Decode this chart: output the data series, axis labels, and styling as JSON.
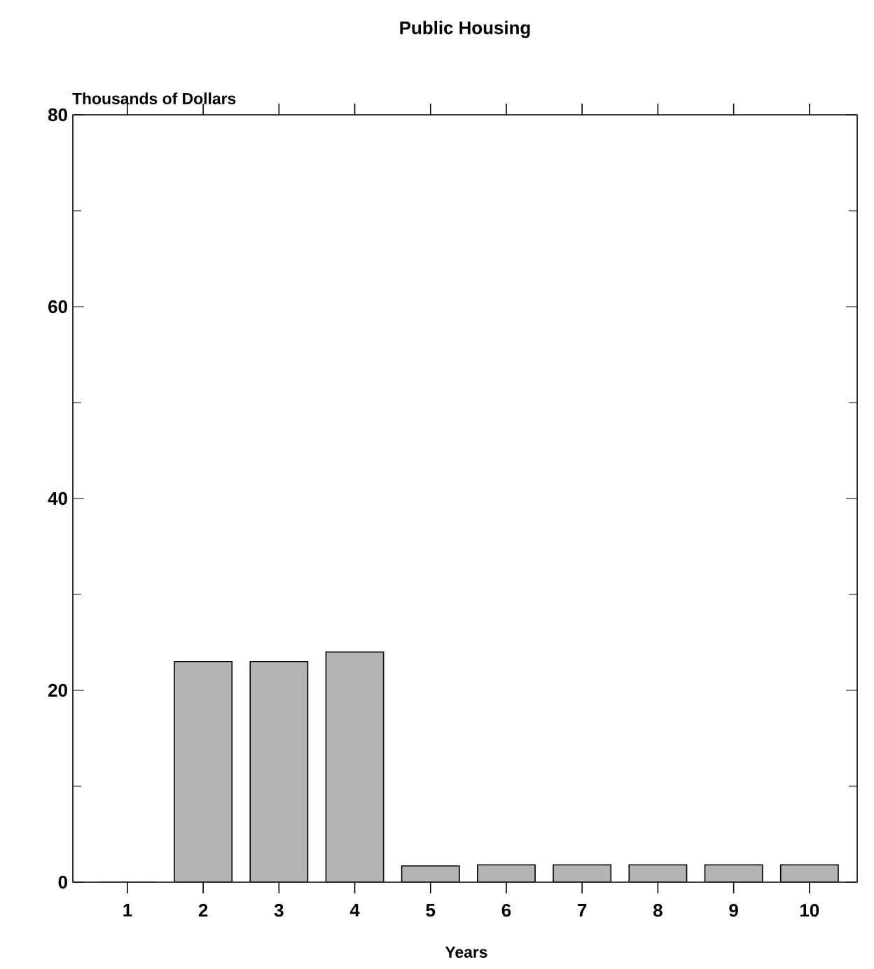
{
  "chart_data": {
    "type": "bar",
    "title": "Public Housing",
    "ylabel": "Thousands of Dollars",
    "xlabel": "Years",
    "categories": [
      "1",
      "2",
      "3",
      "4",
      "5",
      "6",
      "7",
      "8",
      "9",
      "10"
    ],
    "values": [
      0,
      23,
      23,
      24,
      1.7,
      1.8,
      1.8,
      1.8,
      1.8,
      1.8
    ],
    "color": "#b4b4b4",
    "ylim": [
      0,
      80
    ],
    "yticks": [
      0,
      {
        "value": 10,
        "label": null
      },
      20,
      {
        "value": 30,
        "label": null
      },
      40,
      {
        "value": 50,
        "label": null
      },
      60,
      {
        "value": 70,
        "label": null
      },
      80
    ]
  }
}
